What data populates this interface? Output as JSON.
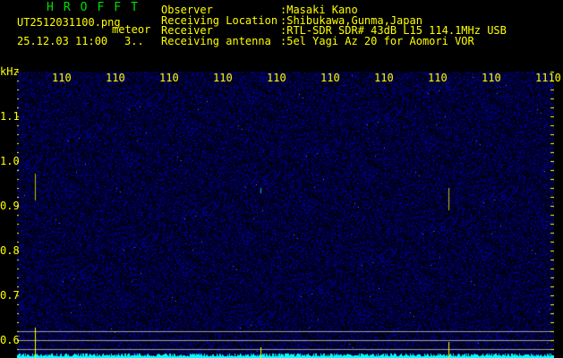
{
  "app_title": "HROFFT",
  "file_name": "UT2512031100.png",
  "mode": "meteor",
  "datetime": "25.12.03 11:00",
  "count": "3..",
  "info": [
    {
      "label": "Observer",
      "value": ":Masaki Kano"
    },
    {
      "label": "Receiving Location",
      "value": ":Shibukawa,Gunma,Japan"
    },
    {
      "label": "Receiver",
      "value": ":RTL-SDR SDR# 43dB L15 114.1MHz USB"
    },
    {
      "label": "Receiving antenna",
      "value": ":5el Yagi Az 20 for Aomori VOR"
    }
  ],
  "y_unit": "kHz",
  "y_ticks": [
    "1.1",
    "1.0",
    "0.9",
    "0.8",
    "0.7",
    "0.6"
  ],
  "x_ticks": [
    "1101",
    "1102",
    "1103",
    "1104",
    "1105",
    "1106",
    "1107",
    "1108",
    "1109",
    "1110"
  ],
  "colors": {
    "text": "#ffff00",
    "title": "#00e000",
    "noise": "#1a1aa0",
    "level": "#00ffff",
    "grid": "#a0a0a0"
  }
}
